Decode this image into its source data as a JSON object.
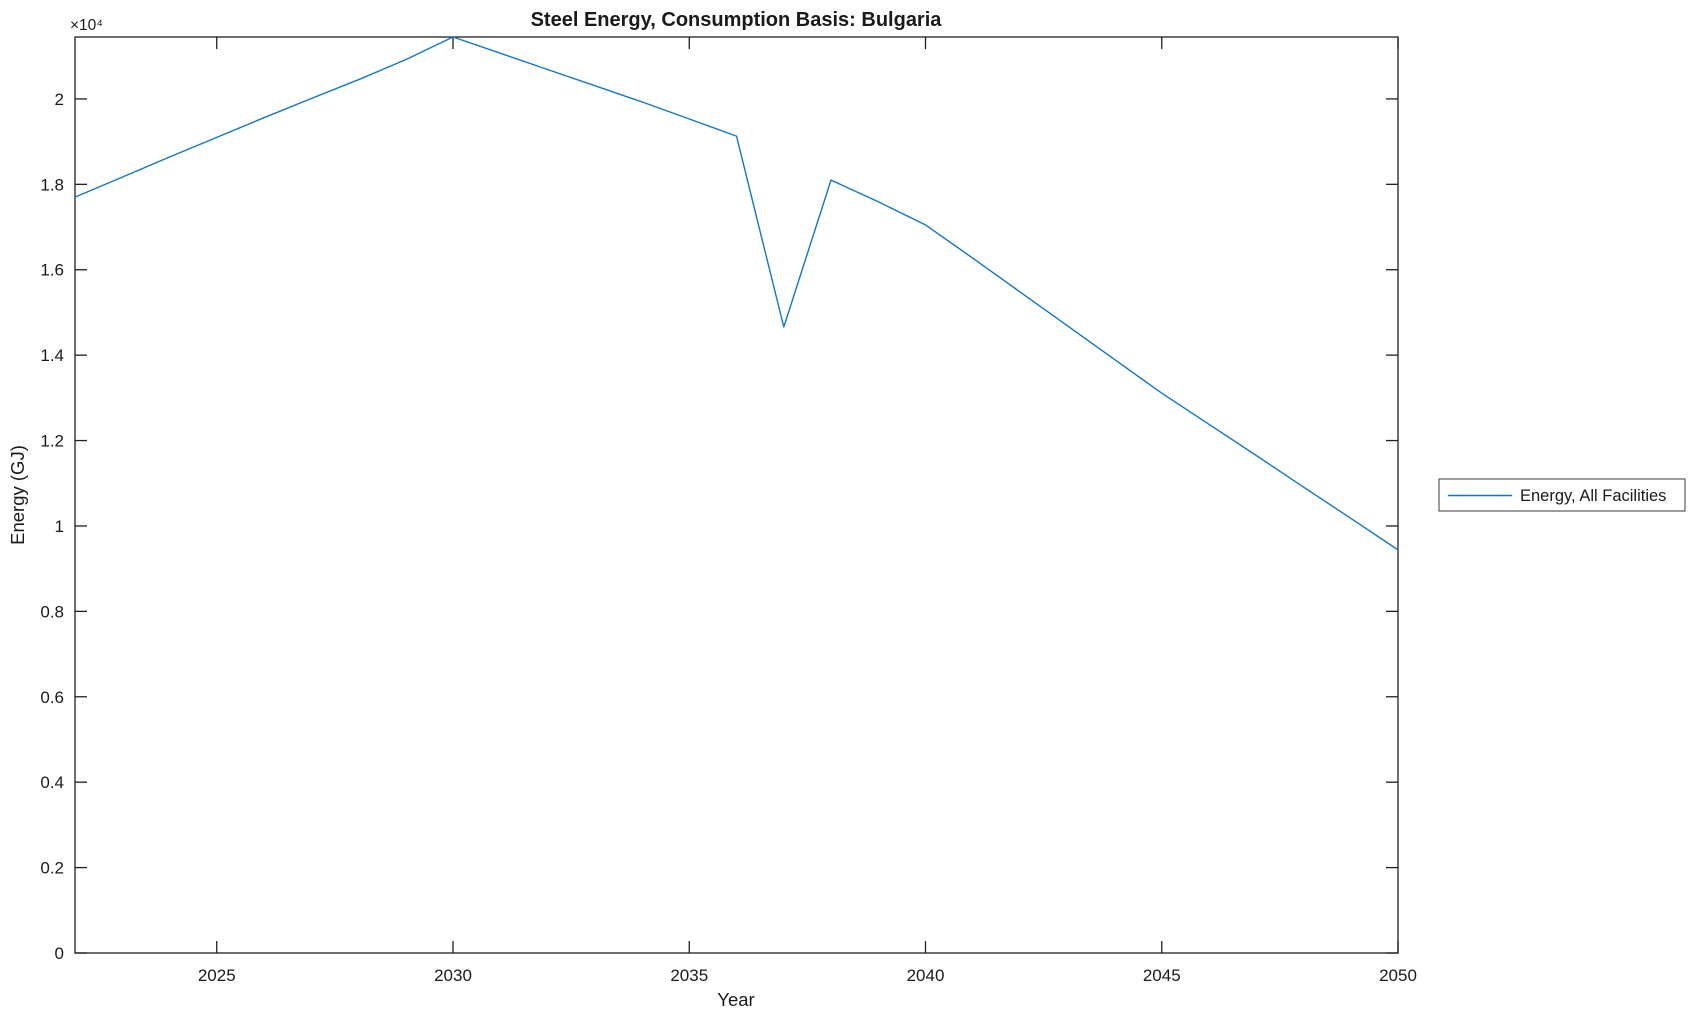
{
  "chart_data": {
    "type": "line",
    "title": "Steel Energy, Consumption Basis: Bulgaria",
    "xlabel": "Year",
    "ylabel": "Energy (GJ)",
    "y_offset_label": "×10⁴",
    "xlim": [
      2022,
      2050
    ],
    "ylim": [
      0,
      21450
    ],
    "x_ticks": [
      2025,
      2030,
      2035,
      2040,
      2045,
      2050
    ],
    "y_ticks": [
      0,
      2000,
      4000,
      6000,
      8000,
      10000,
      12000,
      14000,
      16000,
      18000,
      20000
    ],
    "y_tick_labels": [
      "0",
      "0.2",
      "0.4",
      "0.6",
      "0.8",
      "1",
      "1.2",
      "1.4",
      "1.6",
      "1.8",
      "2"
    ],
    "grid": false,
    "legend_position": "right-outside",
    "axis_color": "#1f1f1f",
    "series": [
      {
        "name": "Energy, All Facilities",
        "color": "#1177c8",
        "x": [
          2022,
          2023,
          2024,
          2025,
          2026,
          2027,
          2028,
          2029,
          2030,
          2031,
          2032,
          2033,
          2034,
          2035,
          2036,
          2037,
          2038,
          2039,
          2040,
          2041,
          2042,
          2043,
          2044,
          2045,
          2046,
          2047,
          2048,
          2049,
          2050
        ],
        "y": [
          17700,
          18170,
          18640,
          19100,
          19560,
          20010,
          20450,
          20920,
          21450,
          21070,
          20690,
          20310,
          19930,
          19530,
          19130,
          14660,
          18100,
          17590,
          17050,
          16270,
          15480,
          14690,
          13900,
          13110,
          12380,
          11650,
          10910,
          10180,
          9440
        ]
      }
    ]
  }
}
